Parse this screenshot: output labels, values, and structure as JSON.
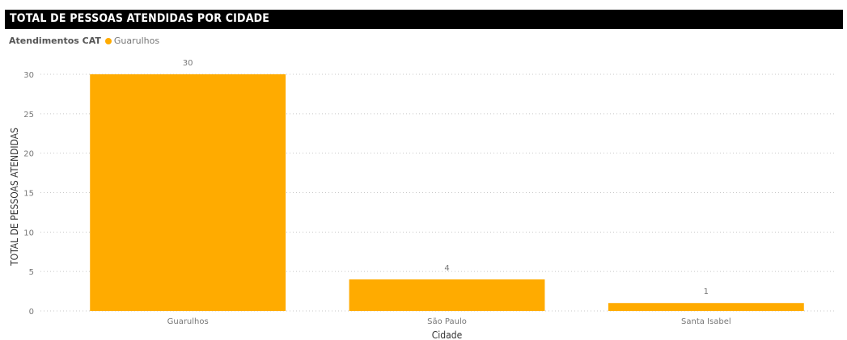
{
  "title": "TOTAL DE PESSOAS ATENDIDAS POR CIDADE",
  "legend": {
    "title": "Atendimentos CAT",
    "entry": "Guarulhos",
    "color": "#FFAB00"
  },
  "chart_data": {
    "type": "bar",
    "categories": [
      "Guarulhos",
      "São Paulo",
      "Santa Isabel"
    ],
    "values": [
      30,
      4,
      1
    ],
    "data_labels": [
      "30",
      "4",
      "1"
    ],
    "xlabel": "Cidade",
    "ylabel": "TOTAL DE PESSOAS ATENDIDAS",
    "ylim": [
      0,
      30
    ],
    "yticks": [
      0,
      5,
      10,
      15,
      20,
      25,
      30
    ],
    "ytick_labels": [
      "0",
      "5",
      "10",
      "15",
      "20",
      "25",
      "30"
    ],
    "bar_color": "#FFAB00",
    "grid": true,
    "legend_position": "top-left"
  }
}
